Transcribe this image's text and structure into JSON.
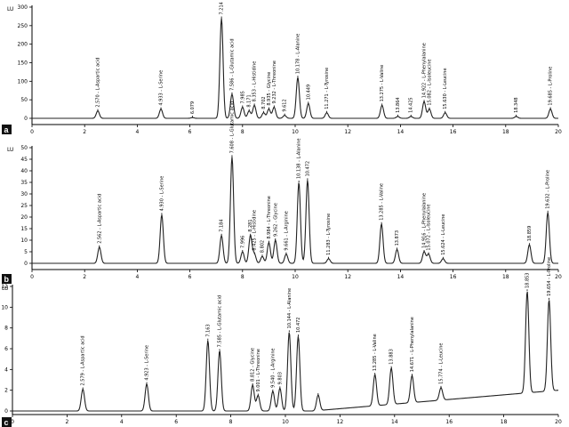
{
  "chart_data": [
    {
      "type": "line",
      "panel": "a",
      "unit_label": "LU",
      "xlim": [
        0,
        20
      ],
      "ylim": [
        0,
        300
      ],
      "yticks": [
        "300",
        "250",
        "200",
        "150",
        "100",
        "50",
        "0"
      ],
      "xticks": [
        "0",
        "2",
        "4",
        "6",
        "8",
        "10",
        "12",
        "14",
        "16",
        "18",
        "20"
      ],
      "peaks": [
        {
          "x": 2.5,
          "h": 20,
          "label": "2.570 - L-Aspartic acid"
        },
        {
          "x": 4.9,
          "h": 25,
          "label": "4.933 - L-Serine"
        },
        {
          "x": 6.1,
          "h": 2,
          "label": "6.079"
        },
        {
          "x": 7.2,
          "h": 270,
          "label": "7.214"
        },
        {
          "x": 7.6,
          "h": 65,
          "label": "7.586 - L-Glutamic acid"
        },
        {
          "x": 8.0,
          "h": 30,
          "label": "7.985"
        },
        {
          "x": 8.25,
          "h": 20,
          "label": "8.171"
        },
        {
          "x": 8.45,
          "h": 35,
          "label": "8.353 - L-Histidine"
        },
        {
          "x": 8.8,
          "h": 15,
          "label": "8.702"
        },
        {
          "x": 9.0,
          "h": 25,
          "label": "8.935 - Glycine"
        },
        {
          "x": 9.2,
          "h": 30,
          "label": "9.232 - L-Threonine"
        },
        {
          "x": 9.6,
          "h": 8,
          "label": "9.612"
        },
        {
          "x": 10.1,
          "h": 110,
          "label": "10.178 - L-Alanine"
        },
        {
          "x": 10.5,
          "h": 40,
          "label": "10.449"
        },
        {
          "x": 11.2,
          "h": 15,
          "label": "11.271 - L-Tyrosine"
        },
        {
          "x": 13.3,
          "h": 35,
          "label": "13.275 - L-Valine"
        },
        {
          "x": 13.9,
          "h": 5,
          "label": "13.864"
        },
        {
          "x": 14.4,
          "h": 5,
          "label": "14.425"
        },
        {
          "x": 14.9,
          "h": 45,
          "label": "14.922 - L-Phenylalanine"
        },
        {
          "x": 15.1,
          "h": 25,
          "label": "15.082 - L-Isoleucine"
        },
        {
          "x": 15.7,
          "h": 15,
          "label": "15.630 - L-Leucine"
        },
        {
          "x": 18.4,
          "h": 5,
          "label": "18.348"
        },
        {
          "x": 19.7,
          "h": 25,
          "label": "19.685 - L-Proline"
        }
      ]
    },
    {
      "type": "line",
      "panel": "b",
      "unit_label": "LU",
      "xlim": [
        0,
        20
      ],
      "ylim": [
        0,
        50
      ],
      "yticks": [
        "50",
        "45",
        "40",
        "35",
        "30",
        "25",
        "20",
        "15",
        "10",
        "5",
        "0"
      ],
      "xticks": [
        "0",
        "2",
        "4",
        "6",
        "8",
        "10",
        "12",
        "14",
        "16",
        "18",
        "20"
      ],
      "peaks": [
        {
          "x": 2.56,
          "h": 7,
          "label": "2.562 - L-Aspartic acid"
        },
        {
          "x": 4.93,
          "h": 21,
          "label": "4.930 - L-Serine"
        },
        {
          "x": 7.2,
          "h": 12,
          "label": "7.184"
        },
        {
          "x": 7.6,
          "h": 46,
          "label": "7.608 - L-Glutamic acid"
        },
        {
          "x": 8.0,
          "h": 5,
          "label": "7.996"
        },
        {
          "x": 8.3,
          "h": 12,
          "label": "8.281"
        },
        {
          "x": 8.45,
          "h": 4,
          "label": "8.425 - L-Histidine"
        },
        {
          "x": 8.75,
          "h": 3,
          "label": "8.802"
        },
        {
          "x": 9.0,
          "h": 9,
          "label": "8.984 - L-Threonine"
        },
        {
          "x": 9.25,
          "h": 10,
          "label": "9.262 - Glycine"
        },
        {
          "x": 9.66,
          "h": 4,
          "label": "9.661 - L-Arginine"
        },
        {
          "x": 10.14,
          "h": 35,
          "label": "10.138 - L-Alanine"
        },
        {
          "x": 10.47,
          "h": 36,
          "label": "10.472"
        },
        {
          "x": 11.27,
          "h": 2,
          "label": "11.283 - L-Tyrosine"
        },
        {
          "x": 13.28,
          "h": 17,
          "label": "13.285 - L-Valine"
        },
        {
          "x": 13.87,
          "h": 6,
          "label": "13.873"
        },
        {
          "x": 14.9,
          "h": 5,
          "label": "14.916 - L-Phenylalanine"
        },
        {
          "x": 15.07,
          "h": 4,
          "label": "15.072 - L-Isoleucine"
        },
        {
          "x": 15.62,
          "h": 2,
          "label": "15.624 - L-Leucine"
        },
        {
          "x": 18.9,
          "h": 8,
          "label": "18.859"
        },
        {
          "x": 19.6,
          "h": 22,
          "label": "19.632 - L-Proline"
        }
      ]
    },
    {
      "type": "line",
      "panel": "c",
      "unit_label": "LU",
      "xlim": [
        0,
        20
      ],
      "ylim": [
        0,
        12
      ],
      "yticks": [
        "12",
        "10",
        "8",
        "6",
        "4",
        "2",
        "0"
      ],
      "xticks": [
        "0",
        "2",
        "4",
        "6",
        "8",
        "10",
        "12",
        "14",
        "16",
        "18",
        "20"
      ],
      "peaks": [
        {
          "x": 2.58,
          "h": 2.1,
          "label": "2.579 - L-Aspartic acid"
        },
        {
          "x": 4.92,
          "h": 2.6,
          "label": "4.923 - L-Serine"
        },
        {
          "x": 7.16,
          "h": 6.8,
          "label": "7.163"
        },
        {
          "x": 7.59,
          "h": 5.8,
          "label": "7.585 - L-Glutamic acid"
        },
        {
          "x": 8.8,
          "h": 2.5,
          "label": "8.812 - Glycine"
        },
        {
          "x": 9.0,
          "h": 1.5,
          "label": "9.001 - L-Threonine"
        },
        {
          "x": 9.54,
          "h": 1.9,
          "label": "9.540 - L-Arginine"
        },
        {
          "x": 9.8,
          "h": 2.2,
          "label": "9.803"
        },
        {
          "x": 10.14,
          "h": 7.6,
          "label": "10.144 - L-Alanine"
        },
        {
          "x": 10.47,
          "h": 7.2,
          "label": "10.472"
        },
        {
          "x": 11.2,
          "h": 1.5,
          "label": ""
        },
        {
          "x": 13.28,
          "h": 3.0,
          "label": "13.285 - L-Valine"
        },
        {
          "x": 13.88,
          "h": 3.5,
          "label": "13.883"
        },
        {
          "x": 14.64,
          "h": 2.6,
          "label": "14.671 - L-Phenylalanine"
        },
        {
          "x": 15.7,
          "h": 1.2,
          "label": "15.774 - L-Leucine"
        },
        {
          "x": 18.86,
          "h": 9.8,
          "label": "18.853"
        },
        {
          "x": 19.66,
          "h": 8.8,
          "label": "19.654 - L-Proline"
        }
      ]
    }
  ]
}
